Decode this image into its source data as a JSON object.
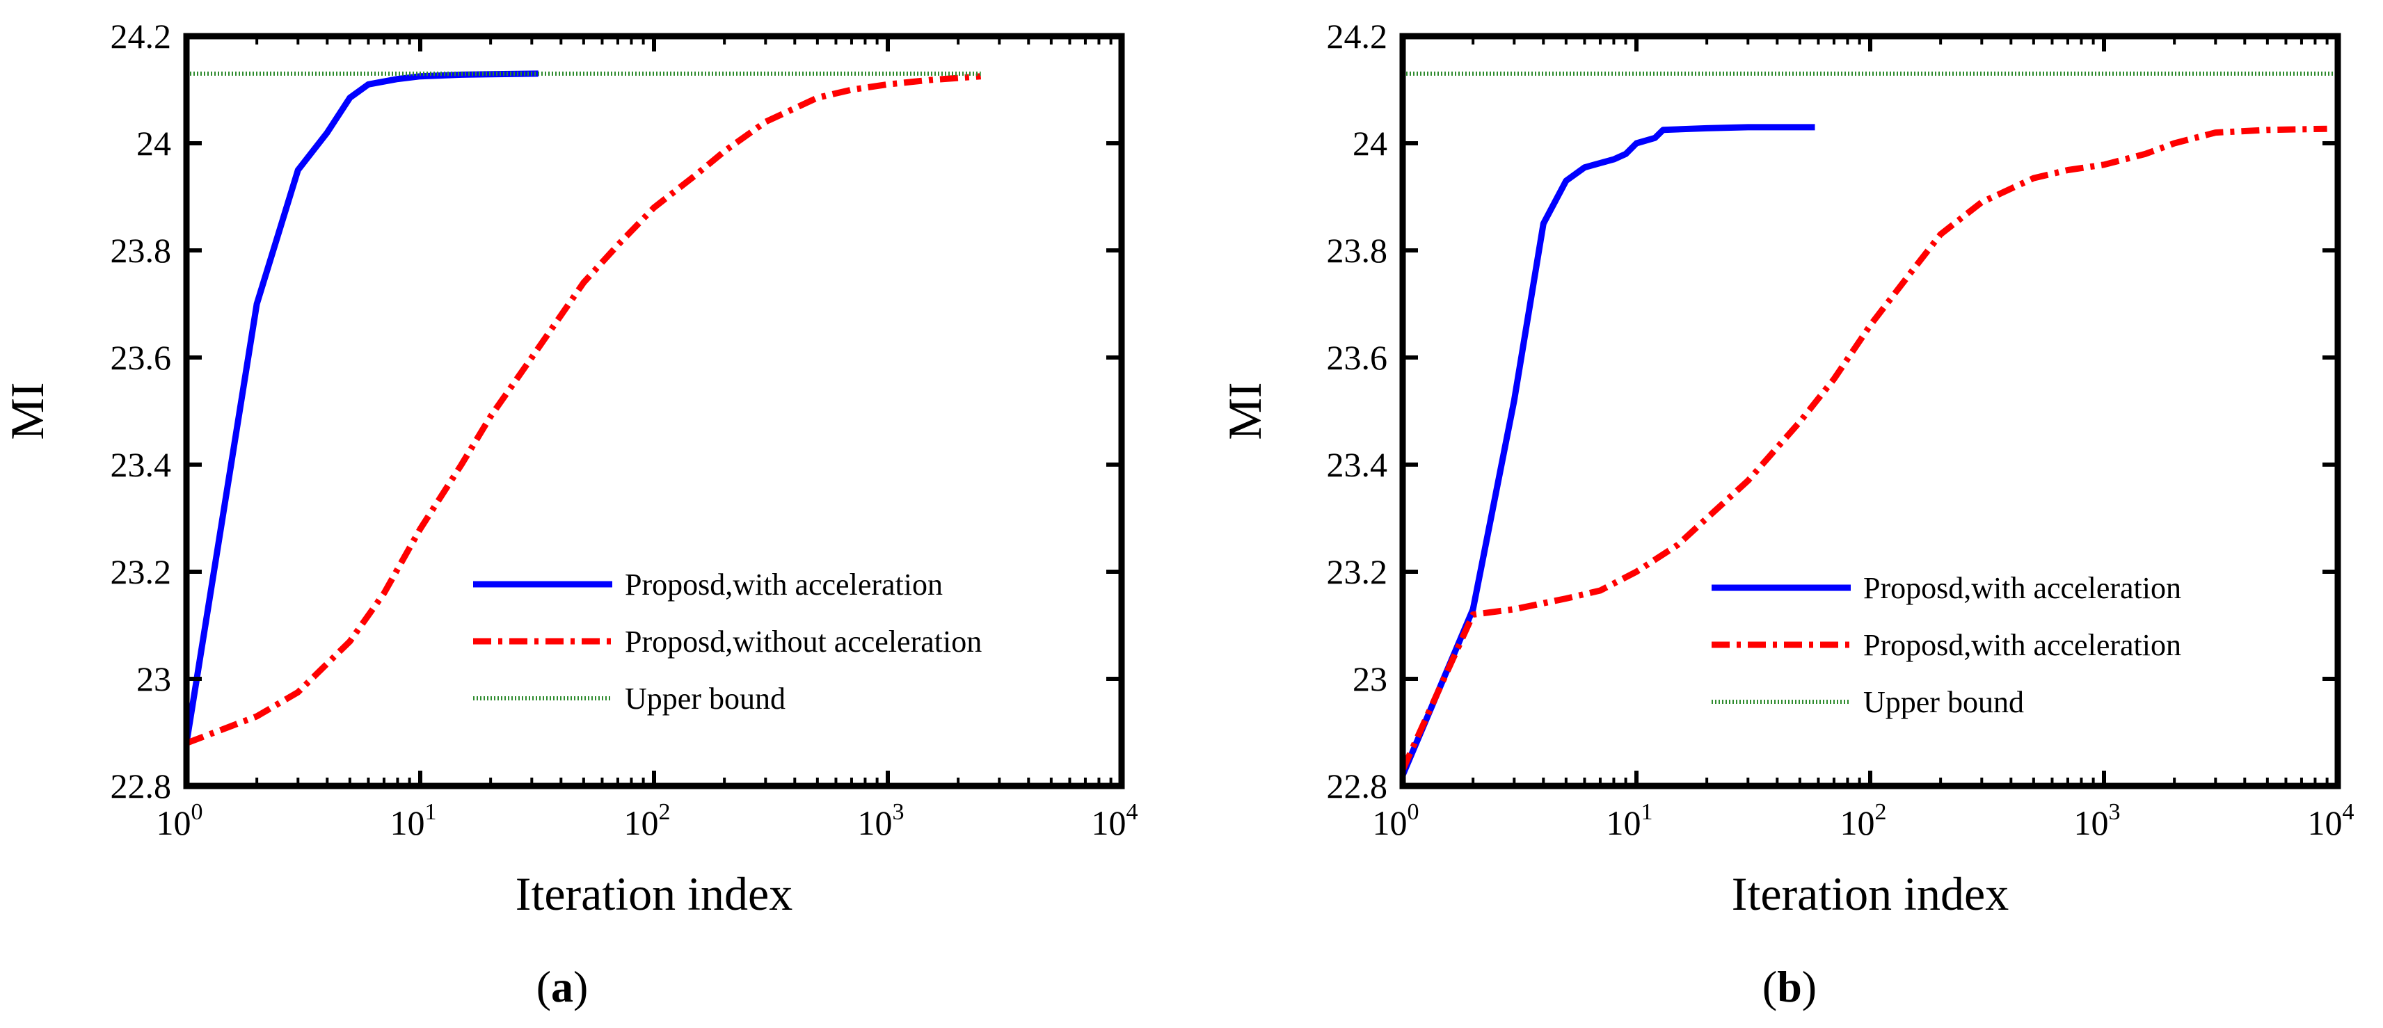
{
  "chart_data": [
    {
      "type": "line",
      "panel_label": "a",
      "xlabel": "Iteration index",
      "ylabel": "MI",
      "xscale": "log",
      "xlim": [
        1,
        10000
      ],
      "ylim": [
        22.8,
        24.2
      ],
      "x_tick_base": "10",
      "x_tick_exponents": [
        "0",
        "1",
        "2",
        "3",
        "4"
      ],
      "y_ticks": [
        "22.8",
        "23",
        "23.2",
        "23.4",
        "23.6",
        "23.8",
        "24",
        "24.2"
      ],
      "legend_position": "lower-right",
      "series": [
        {
          "name": "Proposd,with acceleration",
          "color": "#0000ff",
          "style": "solid",
          "x": [
            1,
            2,
            3,
            4,
            5,
            6,
            8,
            10,
            15,
            20,
            32
          ],
          "y": [
            22.88,
            23.7,
            23.95,
            24.02,
            24.085,
            24.11,
            24.12,
            24.125,
            24.128,
            24.129,
            24.13
          ]
        },
        {
          "name": "Proposd,without acceleration",
          "color": "#ff0000",
          "style": "dashdot",
          "x": [
            1,
            2,
            3,
            5,
            7,
            10,
            15,
            20,
            30,
            50,
            70,
            100,
            150,
            200,
            300,
            500,
            700,
            1000,
            1500,
            2500
          ],
          "y": [
            22.88,
            22.93,
            22.975,
            23.07,
            23.16,
            23.28,
            23.4,
            23.49,
            23.6,
            23.74,
            23.81,
            23.88,
            23.94,
            23.985,
            24.04,
            24.085,
            24.1,
            24.11,
            24.118,
            24.125
          ]
        },
        {
          "name": "Upper bound",
          "color": "#2e8b2e",
          "style": "dotted",
          "x": [
            1,
            2500
          ],
          "y": [
            24.13,
            24.13
          ]
        }
      ]
    },
    {
      "type": "line",
      "panel_label": "b",
      "xlabel": "Iteration index",
      "ylabel": "MI",
      "xscale": "log",
      "xlim": [
        1,
        10000
      ],
      "ylim": [
        22.8,
        24.2
      ],
      "x_tick_base": "10",
      "x_tick_exponents": [
        "0",
        "1",
        "2",
        "3",
        "4"
      ],
      "y_ticks": [
        "22.8",
        "23",
        "23.2",
        "23.4",
        "23.6",
        "23.8",
        "24",
        "24.2"
      ],
      "legend_position": "lower-right",
      "series": [
        {
          "name": "Proposd,with acceleration",
          "color": "#0000ff",
          "style": "solid",
          "x": [
            1,
            2,
            3,
            4,
            5,
            6,
            8,
            9,
            10,
            12,
            13,
            20,
            30,
            58
          ],
          "y": [
            22.82,
            23.13,
            23.52,
            23.85,
            23.93,
            23.955,
            23.97,
            23.98,
            24.0,
            24.01,
            24.025,
            24.028,
            24.03,
            24.03
          ]
        },
        {
          "name": "Proposd,with acceleration",
          "color": "#ff0000",
          "style": "dashdot",
          "x": [
            1,
            2,
            3,
            5,
            7,
            10,
            15,
            20,
            30,
            50,
            70,
            100,
            150,
            200,
            300,
            500,
            700,
            1000,
            1500,
            2000,
            3000,
            5000,
            9000
          ],
          "y": [
            22.83,
            23.12,
            23.13,
            23.15,
            23.165,
            23.2,
            23.25,
            23.3,
            23.37,
            23.48,
            23.56,
            23.66,
            23.76,
            23.83,
            23.89,
            23.935,
            23.95,
            23.96,
            23.98,
            24.0,
            24.02,
            24.025,
            24.027
          ]
        },
        {
          "name": "Upper bound",
          "color": "#2e8b2e",
          "style": "dotted",
          "x": [
            1,
            10000
          ],
          "y": [
            24.13,
            24.13
          ]
        }
      ]
    }
  ]
}
